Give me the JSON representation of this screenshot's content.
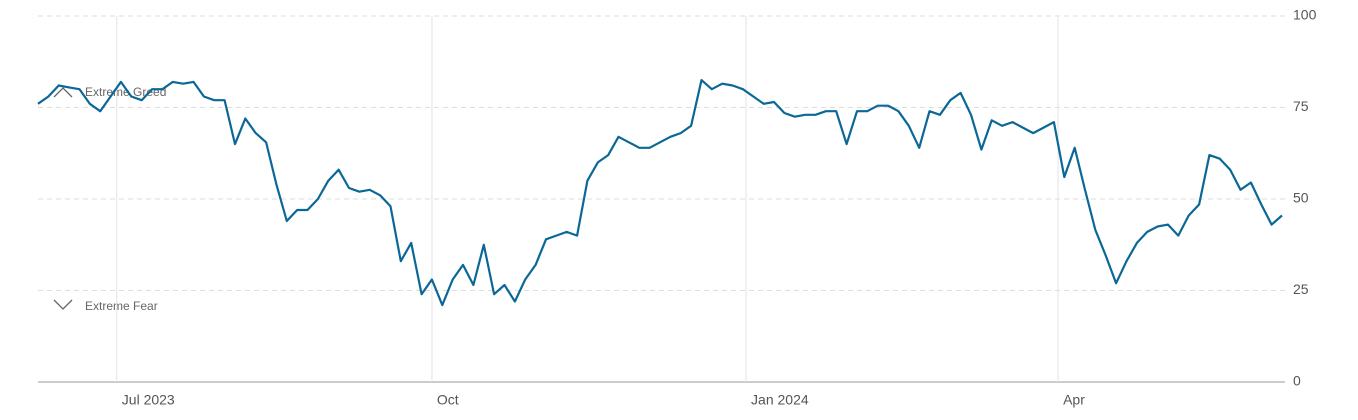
{
  "chart_data": {
    "type": "line",
    "color": "#0b6896",
    "grid": true,
    "annotations": [
      "Extreme Greed",
      "Extreme Fear"
    ],
    "xlim": [
      0,
      120
    ],
    "xticks": [
      {
        "value": 7.6,
        "label": "Jul 2023"
      },
      {
        "value": 38,
        "label": "Oct"
      },
      {
        "value": 68.3,
        "label": "Jan 2024"
      },
      {
        "value": 98.4,
        "label": "Apr"
      }
    ],
    "ylim": [
      0,
      100
    ],
    "yticks": [
      0,
      25,
      50,
      75,
      100
    ],
    "values": [
      76,
      78,
      81,
      80.5,
      80,
      76,
      74,
      78,
      82,
      78,
      77,
      80,
      80,
      82,
      81.5,
      82,
      78,
      77,
      77,
      65,
      72,
      68,
      65.5,
      54,
      44,
      47,
      47,
      50,
      55,
      58,
      53,
      52,
      52.5,
      51,
      48,
      33,
      38,
      24,
      28,
      21,
      28,
      32,
      26.5,
      37.5,
      24,
      26.5,
      22,
      28,
      32,
      39,
      40,
      41,
      40,
      55,
      60,
      62,
      67,
      65.5,
      64,
      64,
      65.5,
      67,
      68,
      70,
      82.5,
      80,
      81.5,
      81,
      80,
      78,
      76,
      76.5,
      73.5,
      72.5,
      73,
      73,
      74,
      74,
      65,
      74,
      74,
      75.5,
      75.5,
      74,
      70,
      64,
      74,
      73,
      77,
      79,
      73,
      63.5,
      71.5,
      70,
      71,
      69.5,
      68,
      69.5,
      71,
      56,
      64,
      52.5,
      41.5,
      34.5,
      27,
      33,
      38,
      41,
      42.5,
      43,
      40,
      45.5,
      48.5,
      62,
      61,
      58,
      52.5,
      54.5,
      48.5,
      43,
      45.5
    ]
  }
}
